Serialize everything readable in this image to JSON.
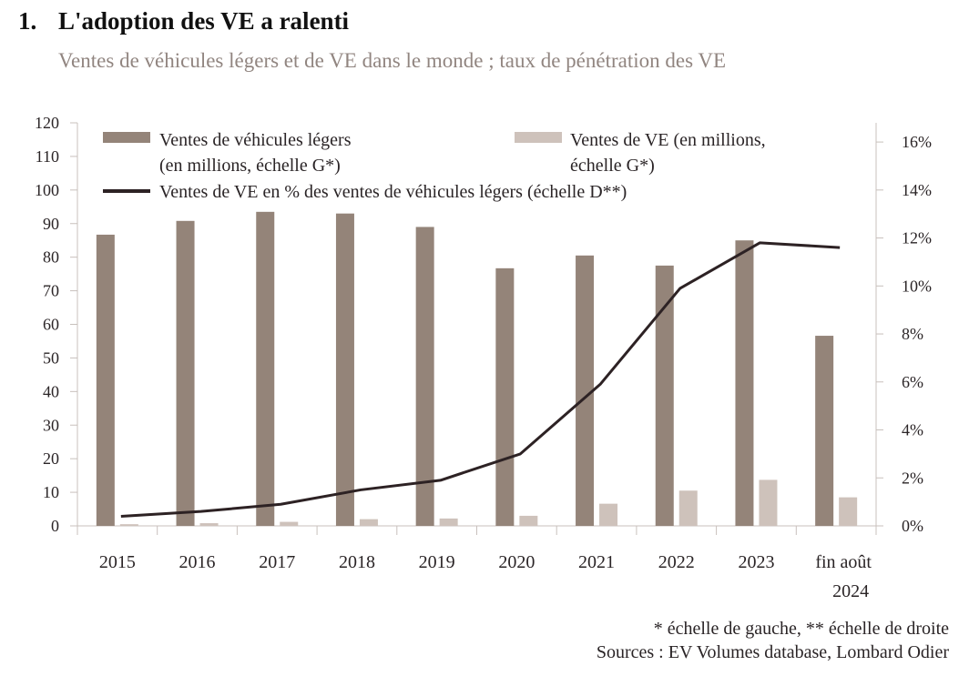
{
  "title_number": "1.",
  "title": "L'adoption des VE a ralenti",
  "subtitle": "Ventes de véhicules légers et de VE dans le monde ; taux de pénétration des VE",
  "colors": {
    "light_vehicles": "#948479",
    "ev_sales": "#cec2bb",
    "ev_share_line": "#2d2224",
    "axis": "#c8c0bc"
  },
  "footnotes": {
    "scales": "* échelle de gauche, ** échelle de droite",
    "sources": "Sources : EV Volumes database, Lombard Odier"
  },
  "chart_data": {
    "type": "bar",
    "title": "L'adoption des VE a ralenti",
    "subtitle": "Ventes de véhicules légers et de VE dans le monde ; taux de pénétration des VE",
    "categories": [
      "2015",
      "2016",
      "2017",
      "2018",
      "2019",
      "2020",
      "2021",
      "2022",
      "2023",
      "fin août 2024"
    ],
    "category_labels": [
      [
        "2015"
      ],
      [
        "2016"
      ],
      [
        "2017"
      ],
      [
        "2018"
      ],
      [
        "2019"
      ],
      [
        "2020"
      ],
      [
        "2021"
      ],
      [
        "2022"
      ],
      [
        "2023"
      ],
      [
        "fin août",
        "2024"
      ]
    ],
    "series": [
      {
        "name": "Ventes de véhicules légers (en millions, échelle G*)",
        "legend_lines": [
          "Ventes de véhicules légers",
          "(en millions, échelle G*)"
        ],
        "type": "bar",
        "axis": "left",
        "values": [
          86.7,
          90.8,
          93.5,
          93.0,
          89.0,
          76.7,
          80.5,
          77.5,
          85.0,
          56.6
        ]
      },
      {
        "name": "Ventes de VE (en millions, échelle G*)",
        "legend_lines": [
          "Ventes de VE (en millions,",
          "échelle G*)"
        ],
        "type": "bar",
        "axis": "left",
        "values": [
          0.5,
          0.8,
          1.2,
          2.0,
          2.2,
          3.0,
          6.6,
          10.5,
          13.7,
          8.5
        ]
      },
      {
        "name": "Ventes de VE en % des ventes de véhicules légers (échelle D**)",
        "legend_lines": [
          "Ventes de VE en % des ventes de véhicules légers (échelle D**)"
        ],
        "type": "line",
        "axis": "right",
        "values": [
          0.4,
          0.6,
          0.9,
          1.5,
          1.9,
          3.0,
          5.9,
          9.9,
          11.8,
          11.6
        ]
      }
    ],
    "y_left": {
      "ylim": [
        0,
        120
      ],
      "ticks": [
        0,
        10,
        20,
        30,
        40,
        50,
        60,
        70,
        80,
        90,
        100,
        110,
        120
      ],
      "tick_labels": [
        "0",
        "10",
        "20",
        "30",
        "40",
        "50",
        "60",
        "70",
        "80",
        "90",
        "100",
        "110",
        "120"
      ]
    },
    "y_right": {
      "ylim": [
        0,
        16.8
      ],
      "ticks": [
        0,
        2,
        4,
        6,
        8,
        10,
        12,
        14,
        16
      ],
      "tick_labels": [
        "0%",
        "2%",
        "4%",
        "6%",
        "8%",
        "10%",
        "12%",
        "14%",
        "16%"
      ]
    },
    "xlabel": "",
    "ylabel": "",
    "grid": false,
    "legend_position": "top"
  }
}
